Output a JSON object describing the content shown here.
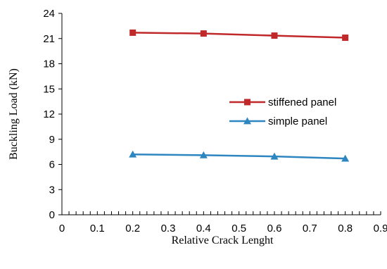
{
  "chart_data": {
    "type": "line",
    "title": "",
    "xlabel": "Relative Crack Lenght",
    "ylabel": "Buckling Load (kN)",
    "xlim": [
      0,
      0.9
    ],
    "ylim": [
      0,
      24
    ],
    "x_ticks": [
      "0",
      "0.1",
      "0.2",
      "0.3",
      "0.4",
      "0.5",
      "0.6",
      "0.7",
      "0.8",
      "0.9"
    ],
    "y_ticks": [
      "0",
      "3",
      "6",
      "9",
      "12",
      "15",
      "18",
      "21",
      "24"
    ],
    "x_minor_step": 0.02,
    "grid": false,
    "legend_position": "right",
    "series": [
      {
        "name": "stiffened panel",
        "color": "#C0282A",
        "marker": "square",
        "x": [
          0.2,
          0.4,
          0.6,
          0.8
        ],
        "y": [
          21.7,
          21.6,
          21.35,
          21.1
        ]
      },
      {
        "name": "simple panel",
        "color": "#2E86C1",
        "marker": "triangle",
        "x": [
          0.2,
          0.4,
          0.6,
          0.8
        ],
        "y": [
          7.2,
          7.1,
          6.95,
          6.7
        ]
      }
    ]
  }
}
